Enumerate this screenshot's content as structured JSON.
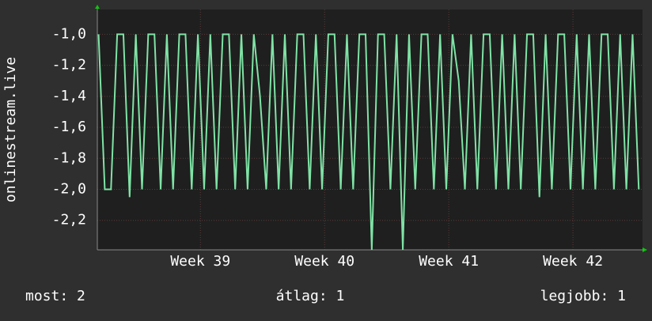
{
  "chart_data": {
    "type": "line",
    "y_label": "onlinestream.live",
    "x": [
      38.18,
      38.23,
      38.28,
      38.33,
      38.38,
      38.43,
      38.48,
      38.53,
      38.58,
      38.63,
      38.68,
      38.73,
      38.78,
      38.83,
      38.88,
      38.93,
      38.98,
      39.03,
      39.08,
      39.13,
      39.18,
      39.23,
      39.28,
      39.33,
      39.38,
      39.43,
      39.48,
      39.53,
      39.58,
      39.63,
      39.68,
      39.73,
      39.78,
      39.83,
      39.88,
      39.93,
      39.98,
      40.03,
      40.08,
      40.13,
      40.18,
      40.23,
      40.28,
      40.33,
      40.38,
      40.43,
      40.48,
      40.53,
      40.58,
      40.63,
      40.68,
      40.73,
      40.78,
      40.83,
      40.88,
      40.93,
      40.98,
      41.03,
      41.08,
      41.13,
      41.18,
      41.23,
      41.28,
      41.33,
      41.38,
      41.43,
      41.48,
      41.53,
      41.58,
      41.63,
      41.68,
      41.73,
      41.78,
      41.83,
      41.88,
      41.93,
      41.98,
      42.03,
      42.08,
      42.13,
      42.18,
      42.23,
      42.28,
      42.33,
      42.38,
      42.43,
      42.48,
      42.53
    ],
    "series": [
      {
        "name": "onlinestream.live",
        "color": "#7fe3a5",
        "values": [
          -1,
          -2,
          -2,
          -1,
          -1,
          -2.05,
          -1,
          -2,
          -1,
          -1,
          -2,
          -1,
          -2,
          -1,
          -1,
          -2,
          -1,
          -2,
          -1,
          -2,
          -1,
          -1,
          -2,
          -1,
          -2,
          -1,
          -1.4,
          -2,
          -1,
          -2,
          -1,
          -2,
          -1,
          -1,
          -2,
          -1,
          -2,
          -1,
          -1,
          -2,
          -1,
          -2,
          -1,
          -1,
          -2.39,
          -1,
          -1,
          -2,
          -1,
          -2.39,
          -1,
          -2,
          -1,
          -1,
          -2,
          -1,
          -2,
          -1,
          -1.3,
          -2,
          -1,
          -2,
          -1,
          -1,
          -2,
          -1,
          -2,
          -1,
          -2,
          -1,
          -1,
          -2.05,
          -1,
          -2,
          -1,
          -1,
          -2,
          -1,
          -2,
          -1,
          -2,
          -1,
          -1,
          -2,
          -1,
          -2,
          -1,
          -2
        ]
      }
    ],
    "xlim": [
      38.17,
      42.56
    ],
    "xticks": [
      {
        "value": 39,
        "label": "Week 39"
      },
      {
        "value": 40,
        "label": "Week 40"
      },
      {
        "value": 41,
        "label": "Week 41"
      },
      {
        "value": 42,
        "label": "Week 42"
      }
    ],
    "ylim": [
      -2.39,
      -0.84
    ],
    "yticks": [
      {
        "value": -1,
        "label": "-1,0"
      },
      {
        "value": -1.2,
        "label": "-1,2"
      },
      {
        "value": -1.4,
        "label": "-1,4"
      },
      {
        "value": -1.6,
        "label": "-1,6"
      },
      {
        "value": -1.8,
        "label": "-1,8"
      },
      {
        "value": -2,
        "label": "-2,0"
      },
      {
        "value": -2.2,
        "label": "-2,2"
      }
    ],
    "grid": true,
    "footer": [
      "most: 2",
      "átlag: 1",
      "legjobb: 1"
    ]
  }
}
